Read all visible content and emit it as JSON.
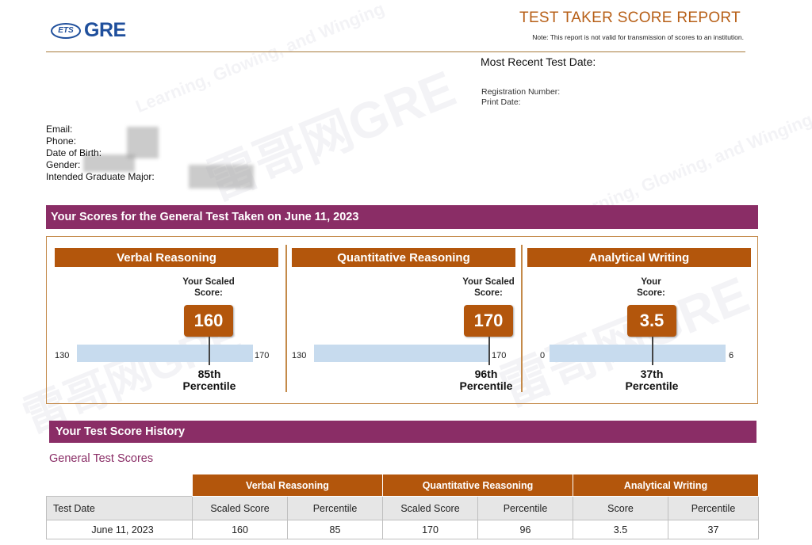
{
  "header": {
    "logo_badge": "ETS",
    "logo_text": "GRE",
    "title": "TEST TAKER SCORE REPORT",
    "note": "Note: This report is not valid for transmission of scores to an institution."
  },
  "meta": {
    "recent_date_label": "Most Recent Test Date:",
    "registration_label": "Registration Number:",
    "print_date_label": "Print Date:"
  },
  "personal": {
    "email_label": "Email:",
    "phone_label": "Phone:",
    "dob_label": "Date of Birth:",
    "gender_label": "Gender:",
    "major_label": "Intended Graduate Major:"
  },
  "scores_section": {
    "title": "Your Scores for the General Test Taken on June 11, 2023",
    "sections": [
      {
        "name": "Verbal Reasoning",
        "score_label_1": "Your Scaled",
        "score_label_2": "Score:",
        "score": "160",
        "min": "130",
        "max": "170",
        "percentile_value": "85th",
        "percentile_word": "Percentile"
      },
      {
        "name": "Quantitative Reasoning",
        "score_label_1": "Your Scaled",
        "score_label_2": "Score:",
        "score": "170",
        "min": "130",
        "max": "170",
        "percentile_value": "96th",
        "percentile_word": "Percentile"
      },
      {
        "name": "Analytical Writing",
        "score_label_1": "Your",
        "score_label_2": "Score:",
        "score": "3.5",
        "min": "0",
        "max": "6",
        "percentile_value": "37th",
        "percentile_word": "Percentile"
      }
    ]
  },
  "history": {
    "title": "Your Test Score History",
    "subtitle": "General Test Scores",
    "groups": [
      "Verbal Reasoning",
      "Quantitative Reasoning",
      "Analytical Writing"
    ],
    "columns": [
      "Test Date",
      "Scaled Score",
      "Percentile",
      "Scaled Score",
      "Percentile",
      "Score",
      "Percentile"
    ],
    "rows": [
      [
        "June 11, 2023",
        "160",
        "85",
        "170",
        "96",
        "3.5",
        "37"
      ]
    ]
  },
  "watermark": {
    "brand": "雷哥网GRE",
    "slogan": "Learning, Glowing, and Winging"
  },
  "colors": {
    "section_bar": "#8a2d66",
    "accent_orange": "#b3560c",
    "range_bar": "#c7dbee",
    "logo_blue": "#1f4f9c"
  }
}
